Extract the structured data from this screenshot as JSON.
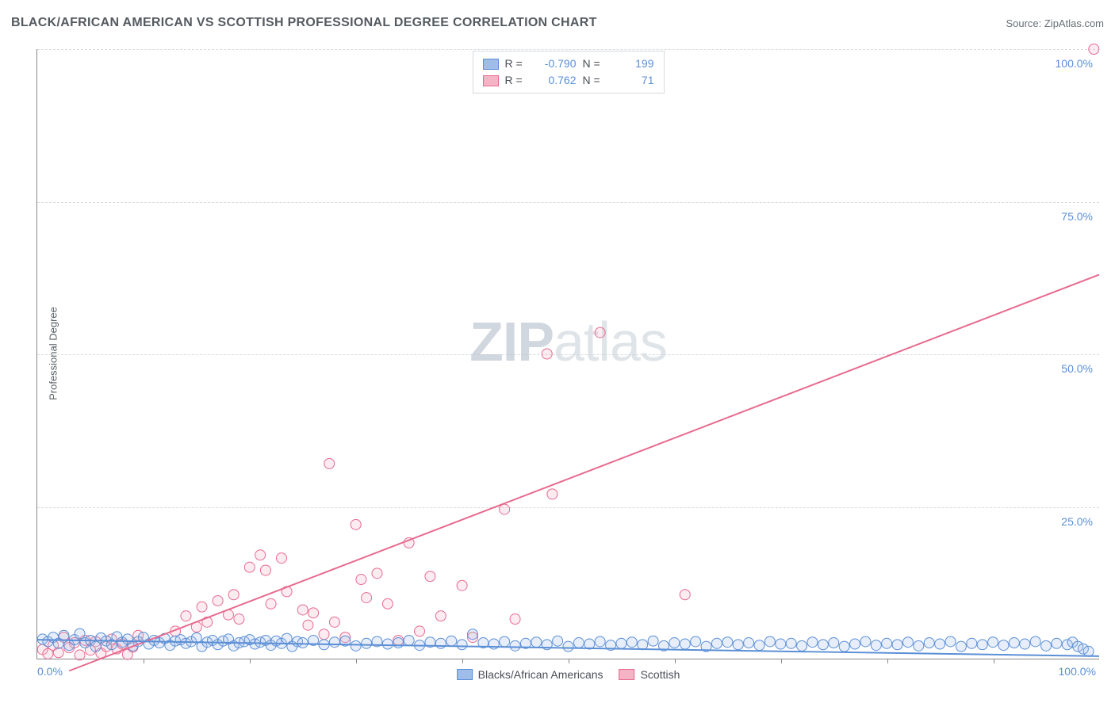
{
  "header": {
    "title": "BLACK/AFRICAN AMERICAN VS SCOTTISH PROFESSIONAL DEGREE CORRELATION CHART",
    "source": "Source: ZipAtlas.com"
  },
  "ylabel": "Professional Degree",
  "watermark": {
    "zip": "ZIP",
    "atlas": "atlas"
  },
  "chart": {
    "type": "scatter",
    "xlim": [
      0,
      100
    ],
    "ylim": [
      0,
      100
    ],
    "background_color": "#ffffff",
    "grid_color": "#d8dbde",
    "axis_color": "#888888",
    "yticks": [
      25,
      50,
      75,
      100
    ],
    "ytick_labels": [
      "25.0%",
      "50.0%",
      "75.0%",
      "100.0%"
    ],
    "xticks_minor": [
      10,
      20,
      30,
      40,
      50,
      60,
      70,
      80,
      90
    ],
    "xtick_labels": [
      {
        "pos": 0,
        "text": "0.0%"
      },
      {
        "pos": 100,
        "text": "100.0%"
      }
    ],
    "ytick_label_color": "#5b8fd6",
    "xtick_label_color": "#5b8fd6",
    "marker_radius": 6.5,
    "marker_stroke_width": 1,
    "marker_fill_opacity": 0.25,
    "trendline_width": 2,
    "series": {
      "blue": {
        "label": "Blacks/African Americans",
        "stroke": "#5b8fd6",
        "fill": "#9ebde8",
        "R_label": "R =",
        "R_value": "-0.790",
        "N_label": "N =",
        "N_value": "199",
        "trendline": {
          "x1": 0,
          "y1": 3.1,
          "x2": 100,
          "y2": 0.4
        },
        "points": [
          [
            0.5,
            3.2
          ],
          [
            1,
            2.8
          ],
          [
            1.5,
            3.5
          ],
          [
            2,
            2.5
          ],
          [
            2.5,
            3.8
          ],
          [
            3,
            2.2
          ],
          [
            3.5,
            3.1
          ],
          [
            4,
            4.1
          ],
          [
            4.5,
            2.6
          ],
          [
            5,
            3.0
          ],
          [
            5.5,
            2.0
          ],
          [
            6,
            3.4
          ],
          [
            6.5,
            2.9
          ],
          [
            7,
            2.3
          ],
          [
            7.5,
            3.6
          ],
          [
            8,
            2.7
          ],
          [
            8.5,
            3.2
          ],
          [
            9,
            2.1
          ],
          [
            9.5,
            2.8
          ],
          [
            10,
            3.5
          ],
          [
            10.5,
            2.4
          ],
          [
            11,
            3.0
          ],
          [
            11.5,
            2.6
          ],
          [
            12,
            3.3
          ],
          [
            12.5,
            2.2
          ],
          [
            13,
            2.9
          ],
          [
            13.5,
            3.1
          ],
          [
            14,
            2.5
          ],
          [
            14.5,
            2.8
          ],
          [
            15,
            3.4
          ],
          [
            15.5,
            2.0
          ],
          [
            16,
            2.7
          ],
          [
            16.5,
            3.0
          ],
          [
            17,
            2.3
          ],
          [
            17.5,
            2.9
          ],
          [
            18,
            3.2
          ],
          [
            18.5,
            2.1
          ],
          [
            19,
            2.6
          ],
          [
            19.5,
            2.8
          ],
          [
            20,
            3.1
          ],
          [
            20.5,
            2.4
          ],
          [
            21,
            2.7
          ],
          [
            21.5,
            3.0
          ],
          [
            22,
            2.2
          ],
          [
            22.5,
            2.9
          ],
          [
            23,
            2.5
          ],
          [
            23.5,
            3.3
          ],
          [
            24,
            2.0
          ],
          [
            24.5,
            2.8
          ],
          [
            25,
            2.6
          ],
          [
            26,
            3.0
          ],
          [
            27,
            2.3
          ],
          [
            28,
            2.7
          ],
          [
            29,
            2.9
          ],
          [
            30,
            2.1
          ],
          [
            31,
            2.5
          ],
          [
            32,
            2.8
          ],
          [
            33,
            2.4
          ],
          [
            34,
            2.6
          ],
          [
            35,
            3.0
          ],
          [
            36,
            2.2
          ],
          [
            37,
            2.7
          ],
          [
            38,
            2.5
          ],
          [
            39,
            2.9
          ],
          [
            40,
            2.3
          ],
          [
            41,
            4.0
          ],
          [
            42,
            2.6
          ],
          [
            43,
            2.4
          ],
          [
            44,
            2.8
          ],
          [
            45,
            2.1
          ],
          [
            46,
            2.5
          ],
          [
            47,
            2.7
          ],
          [
            48,
            2.3
          ],
          [
            49,
            2.9
          ],
          [
            50,
            2.0
          ],
          [
            51,
            2.6
          ],
          [
            52,
            2.4
          ],
          [
            53,
            2.8
          ],
          [
            54,
            2.2
          ],
          [
            55,
            2.5
          ],
          [
            56,
            2.7
          ],
          [
            57,
            2.3
          ],
          [
            58,
            2.9
          ],
          [
            59,
            2.1
          ],
          [
            60,
            2.6
          ],
          [
            61,
            2.4
          ],
          [
            62,
            2.8
          ],
          [
            63,
            2.0
          ],
          [
            64,
            2.5
          ],
          [
            65,
            2.7
          ],
          [
            66,
            2.3
          ],
          [
            67,
            2.6
          ],
          [
            68,
            2.2
          ],
          [
            69,
            2.8
          ],
          [
            70,
            2.4
          ],
          [
            71,
            2.5
          ],
          [
            72,
            2.1
          ],
          [
            73,
            2.7
          ],
          [
            74,
            2.3
          ],
          [
            75,
            2.6
          ],
          [
            76,
            2.0
          ],
          [
            77,
            2.4
          ],
          [
            78,
            2.8
          ],
          [
            79,
            2.2
          ],
          [
            80,
            2.5
          ],
          [
            81,
            2.3
          ],
          [
            82,
            2.7
          ],
          [
            83,
            2.1
          ],
          [
            84,
            2.6
          ],
          [
            85,
            2.4
          ],
          [
            86,
            2.8
          ],
          [
            87,
            2.0
          ],
          [
            88,
            2.5
          ],
          [
            89,
            2.3
          ],
          [
            90,
            2.7
          ],
          [
            91,
            2.2
          ],
          [
            92,
            2.6
          ],
          [
            93,
            2.4
          ],
          [
            94,
            2.8
          ],
          [
            95,
            2.1
          ],
          [
            96,
            2.5
          ],
          [
            97,
            2.3
          ],
          [
            97.5,
            2.7
          ],
          [
            98,
            2.0
          ],
          [
            98.5,
            1.6
          ],
          [
            99,
            1.2
          ]
        ]
      },
      "pink": {
        "label": "Scottish",
        "stroke": "#e76a8f",
        "fill": "#f5b3c6",
        "R_label": "R =",
        "R_value": "0.762",
        "N_label": "N =",
        "N_value": "71",
        "trendline": {
          "x1": 3,
          "y1": -2,
          "x2": 100,
          "y2": 63
        },
        "points": [
          [
            0.5,
            1.5
          ],
          [
            1,
            0.8
          ],
          [
            1.5,
            2.2
          ],
          [
            2,
            1.0
          ],
          [
            2.5,
            3.5
          ],
          [
            3,
            1.8
          ],
          [
            3.5,
            2.6
          ],
          [
            4,
            0.6
          ],
          [
            4.5,
            3.0
          ],
          [
            5,
            1.4
          ],
          [
            5.5,
            2.8
          ],
          [
            6,
            0.9
          ],
          [
            6.5,
            2.0
          ],
          [
            7,
            3.2
          ],
          [
            7.5,
            1.6
          ],
          [
            8,
            2.4
          ],
          [
            8.5,
            0.7
          ],
          [
            9,
            1.9
          ],
          [
            9.5,
            3.8
          ],
          [
            13,
            4.5
          ],
          [
            14,
            7.0
          ],
          [
            15,
            5.2
          ],
          [
            15.5,
            8.5
          ],
          [
            16,
            6.0
          ],
          [
            17,
            9.5
          ],
          [
            18,
            7.2
          ],
          [
            18.5,
            10.5
          ],
          [
            19,
            6.5
          ],
          [
            20,
            15.0
          ],
          [
            21,
            17.0
          ],
          [
            21.5,
            14.5
          ],
          [
            22,
            9.0
          ],
          [
            23,
            16.5
          ],
          [
            23.5,
            11.0
          ],
          [
            25,
            8.0
          ],
          [
            25.5,
            5.5
          ],
          [
            26,
            7.5
          ],
          [
            27,
            4.0
          ],
          [
            27.5,
            32.0
          ],
          [
            28,
            6.0
          ],
          [
            29,
            3.5
          ],
          [
            30,
            22.0
          ],
          [
            30.5,
            13.0
          ],
          [
            31,
            10.0
          ],
          [
            32,
            14.0
          ],
          [
            33,
            9.0
          ],
          [
            34,
            3.0
          ],
          [
            35,
            19.0
          ],
          [
            36,
            4.5
          ],
          [
            37,
            13.5
          ],
          [
            38,
            7.0
          ],
          [
            40,
            12.0
          ],
          [
            41,
            3.5
          ],
          [
            44,
            24.5
          ],
          [
            45,
            6.5
          ],
          [
            48,
            50.0
          ],
          [
            48.5,
            27.0
          ],
          [
            53,
            53.5
          ],
          [
            61,
            10.5
          ],
          [
            99.5,
            100.0
          ]
        ]
      }
    }
  },
  "legend_bottom": {
    "items": [
      {
        "swatch_fill": "#9ebde8",
        "swatch_stroke": "#5b8fd6",
        "label": "Blacks/African Americans"
      },
      {
        "swatch_fill": "#f5b3c6",
        "swatch_stroke": "#e76a8f",
        "label": "Scottish"
      }
    ]
  }
}
